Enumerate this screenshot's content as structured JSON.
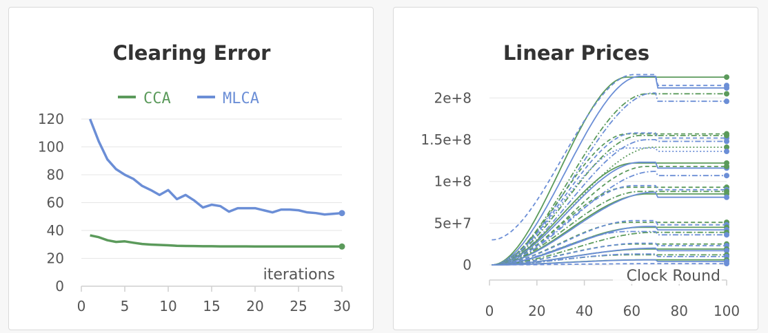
{
  "colors": {
    "cca": "#5b9a5b",
    "mlca": "#6b8ed6",
    "grid": "#e6e6e6",
    "axis": "#cfcfcf"
  },
  "chart_data": [
    {
      "type": "line",
      "title": "Clearing Error",
      "xlabel": "iterations",
      "ylabel": "",
      "xlim": [
        0,
        30
      ],
      "ylim": [
        0,
        120
      ],
      "xticks": [
        0,
        5,
        10,
        15,
        20,
        25,
        30
      ],
      "yticks": [
        0,
        20,
        40,
        60,
        80,
        100,
        120
      ],
      "legend": "top",
      "grid": true,
      "series": [
        {
          "name": "CCA",
          "x": [
            1,
            2,
            3,
            4,
            5,
            6,
            7,
            8,
            9,
            10,
            11,
            12,
            13,
            14,
            15,
            16,
            17,
            18,
            19,
            20,
            21,
            22,
            23,
            24,
            25,
            26,
            27,
            28,
            29,
            30
          ],
          "y": [
            36.5,
            35.2,
            33.0,
            31.8,
            32.2,
            31.2,
            30.3,
            29.9,
            29.6,
            29.4,
            29.0,
            28.9,
            28.8,
            28.7,
            28.7,
            28.6,
            28.6,
            28.6,
            28.6,
            28.5,
            28.5,
            28.5,
            28.5,
            28.5,
            28.5,
            28.5,
            28.5,
            28.5,
            28.5,
            28.5
          ]
        },
        {
          "name": "MLCA",
          "x": [
            1,
            2,
            3,
            4,
            5,
            6,
            7,
            8,
            9,
            10,
            11,
            12,
            13,
            14,
            15,
            16,
            17,
            18,
            19,
            20,
            21,
            22,
            23,
            24,
            25,
            26,
            27,
            28,
            29,
            30
          ],
          "y": [
            120,
            104,
            91,
            84,
            80,
            77,
            72,
            69,
            65.5,
            69,
            62.5,
            65.5,
            61.5,
            56.5,
            58.5,
            57.5,
            53.5,
            56,
            56,
            56,
            54.5,
            53,
            55,
            55,
            54.5,
            53,
            52.5,
            51.5,
            52,
            52.5
          ]
        }
      ]
    },
    {
      "type": "line",
      "title": "Linear Prices",
      "xlabel": "Clock Round",
      "ylabel": "",
      "xlim": [
        0,
        100
      ],
      "ylim": [
        0,
        230000000
      ],
      "xticks": [
        0,
        20,
        40,
        60,
        80,
        100
      ],
      "yticks": [
        0,
        50000000,
        100000000,
        150000000,
        200000000
      ],
      "yticklabels": [
        "0",
        "5e+7",
        "1e+8",
        "1.5e+8",
        "2e+8"
      ],
      "grid": true,
      "legend": "none",
      "series_note_free": true,
      "series": [
        {
          "color": "cca",
          "dash": "",
          "jump": false,
          "final": 225000000,
          "start": 0
        },
        {
          "color": "mlca",
          "dash": "6,4",
          "jump": true,
          "pre": 228000000,
          "final": 215000000,
          "start": 30000000
        },
        {
          "color": "mlca",
          "dash": "",
          "jump": true,
          "pre": 226000000,
          "final": 212000000,
          "start": 0
        },
        {
          "color": "cca",
          "dash": "8,3,2,3",
          "jump": false,
          "final": 205000000,
          "start": 0
        },
        {
          "color": "mlca",
          "dash": "8,3,2,3",
          "jump": true,
          "pre": 206000000,
          "final": 196000000,
          "start": 0
        },
        {
          "color": "cca",
          "dash": "6,4",
          "jump": false,
          "final": 157000000,
          "start": 0
        },
        {
          "color": "mlca",
          "dash": "6,4",
          "jump": true,
          "pre": 158000000,
          "final": 152000000,
          "start": 0
        },
        {
          "color": "cca",
          "dash": "8,3,2,3",
          "jump": false,
          "final": 155000000,
          "start": 0
        },
        {
          "color": "mlca",
          "dash": "8,3,2,3",
          "jump": true,
          "pre": 150000000,
          "final": 148000000,
          "start": 0
        },
        {
          "color": "cca",
          "dash": "2,3",
          "jump": false,
          "final": 141000000,
          "start": 0
        },
        {
          "color": "mlca",
          "dash": "2,3",
          "jump": true,
          "pre": 140000000,
          "final": 136000000,
          "start": 0
        },
        {
          "color": "cca",
          "dash": "",
          "jump": false,
          "final": 122000000,
          "start": 0
        },
        {
          "color": "mlca",
          "dash": "",
          "jump": true,
          "pre": 123000000,
          "final": 116000000,
          "start": 0
        },
        {
          "color": "cca",
          "dash": "6,4",
          "jump": false,
          "final": 118000000,
          "start": 0
        },
        {
          "color": "mlca",
          "dash": "8,3,2,3",
          "jump": true,
          "pre": 112000000,
          "final": 107000000,
          "start": 0
        },
        {
          "color": "cca",
          "dash": "6,4",
          "jump": false,
          "final": 93000000,
          "start": 0
        },
        {
          "color": "mlca",
          "dash": "6,4",
          "jump": true,
          "pre": 95000000,
          "final": 90000000,
          "start": 0
        },
        {
          "color": "cca",
          "dash": "8,3,2,3",
          "jump": false,
          "final": 88000000,
          "start": 0
        },
        {
          "color": "cca",
          "dash": "",
          "jump": false,
          "final": 85000000,
          "start": 0
        },
        {
          "color": "mlca",
          "dash": "",
          "jump": true,
          "pre": 87000000,
          "final": 81000000,
          "start": 0
        },
        {
          "color": "cca",
          "dash": "6,4",
          "jump": false,
          "final": 51000000,
          "start": 0
        },
        {
          "color": "mlca",
          "dash": "6,4",
          "jump": true,
          "pre": 53000000,
          "final": 48000000,
          "start": 0
        },
        {
          "color": "cca",
          "dash": "",
          "jump": false,
          "final": 45000000,
          "start": 0
        },
        {
          "color": "mlca",
          "dash": "",
          "jump": true,
          "pre": 46000000,
          "final": 42000000,
          "start": 0
        },
        {
          "color": "cca",
          "dash": "8,3,2,3",
          "jump": false,
          "final": 39000000,
          "start": 0
        },
        {
          "color": "mlca",
          "dash": "8,3,2,3",
          "jump": true,
          "pre": 40000000,
          "final": 36000000,
          "start": 0
        },
        {
          "color": "cca",
          "dash": "6,4",
          "jump": false,
          "final": 25000000,
          "start": 0
        },
        {
          "color": "mlca",
          "dash": "6,4",
          "jump": true,
          "pre": 26000000,
          "final": 23000000,
          "start": 0
        },
        {
          "color": "cca",
          "dash": "",
          "jump": false,
          "final": 19000000,
          "start": 0
        },
        {
          "color": "mlca",
          "dash": "",
          "jump": true,
          "pre": 20000000,
          "final": 17000000,
          "start": 0
        },
        {
          "color": "cca",
          "dash": "8,3,2,3",
          "jump": false,
          "final": 12000000,
          "start": 0
        },
        {
          "color": "mlca",
          "dash": "8,3,2,3",
          "jump": true,
          "pre": 13000000,
          "final": 10000000,
          "start": 0
        },
        {
          "color": "cca",
          "dash": "",
          "jump": false,
          "final": 6000000,
          "start": 0
        },
        {
          "color": "mlca",
          "dash": "",
          "jump": true,
          "pre": 6000000,
          "final": 4000000,
          "start": 0
        },
        {
          "color": "mlca",
          "dash": "6,4",
          "jump": false,
          "final": 1500000,
          "start": 0
        }
      ]
    }
  ]
}
